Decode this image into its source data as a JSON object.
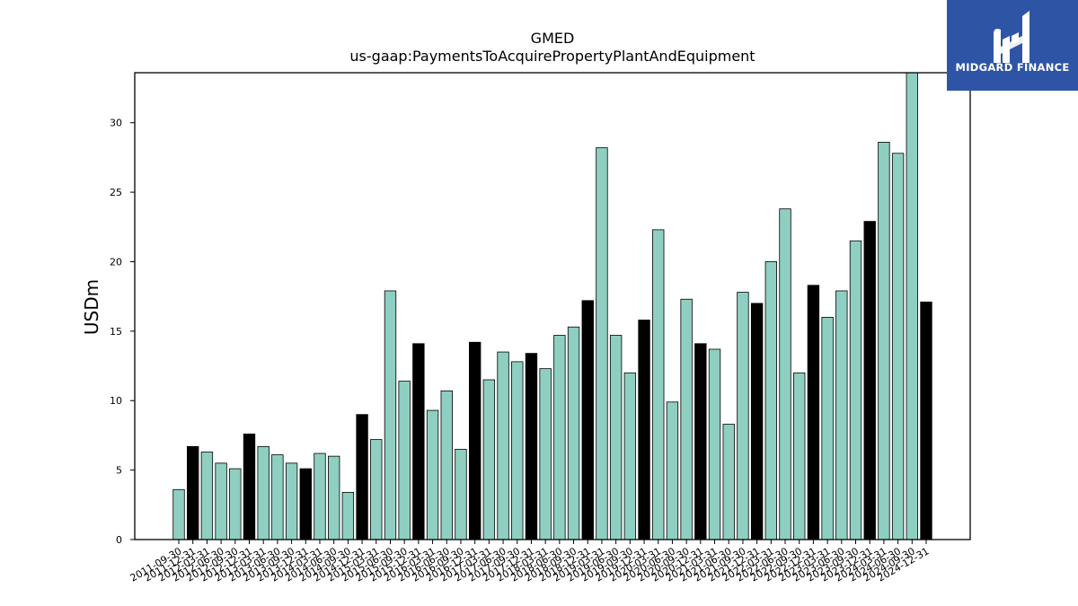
{
  "chart_data": {
    "type": "bar",
    "title": "GMED",
    "subtitle": "us-gaap:PaymentsToAcquirePropertyPlantAndEquipment",
    "ylabel": "USDm",
    "xlabel": "",
    "ylim": [
      0,
      33.6
    ],
    "yticks": [
      0,
      5,
      10,
      15,
      20,
      25,
      30
    ],
    "grid": false,
    "colors": {
      "quarter": "#8ecfc1",
      "fiscal_year_end": "#000000",
      "edge": "#000000"
    },
    "categories": [
      "2011-09-30",
      "2011-12-31",
      "2012-03-31",
      "2012-06-30",
      "2012-09-30",
      "2012-12-31",
      "2013-03-31",
      "2013-06-30",
      "2013-09-30",
      "2013-12-31",
      "2014-03-31",
      "2014-06-30",
      "2014-09-30",
      "2014-12-31",
      "2015-03-31",
      "2015-06-30",
      "2015-09-30",
      "2015-12-31",
      "2016-03-31",
      "2016-06-30",
      "2016-09-30",
      "2016-12-31",
      "2017-03-31",
      "2017-06-30",
      "2017-09-30",
      "2017-12-31",
      "2018-03-31",
      "2018-06-30",
      "2018-09-30",
      "2018-12-31",
      "2019-03-31",
      "2019-06-30",
      "2019-09-30",
      "2019-12-31",
      "2020-03-31",
      "2020-06-30",
      "2020-09-30",
      "2020-12-31",
      "2021-03-31",
      "2021-06-30",
      "2021-09-30",
      "2021-12-31",
      "2022-03-31",
      "2022-06-30",
      "2022-09-30",
      "2022-12-31",
      "2023-03-31",
      "2023-06-30",
      "2023-09-30",
      "2023-12-31",
      "2024-03-31",
      "2024-06-30",
      "2024-09-30",
      "2024-12-31"
    ],
    "values": [
      3.6,
      6.7,
      6.3,
      5.5,
      5.1,
      7.6,
      6.7,
      6.1,
      5.5,
      5.1,
      6.2,
      6.0,
      3.4,
      9.0,
      7.2,
      17.9,
      11.4,
      14.1,
      9.3,
      10.7,
      6.5,
      14.2,
      11.5,
      13.5,
      12.8,
      13.4,
      12.3,
      14.7,
      15.3,
      17.2,
      28.2,
      14.7,
      12.0,
      15.8,
      22.3,
      9.9,
      17.3,
      14.1,
      13.7,
      8.3,
      17.8,
      17.0,
      20.0,
      23.8,
      12.0,
      18.3,
      16.0,
      17.9,
      21.5,
      22.9,
      28.6,
      27.8,
      33.7,
      17.1
    ],
    "year_end": [
      false,
      true,
      false,
      false,
      false,
      true,
      false,
      false,
      false,
      true,
      false,
      false,
      false,
      true,
      false,
      false,
      false,
      true,
      false,
      false,
      false,
      true,
      false,
      false,
      false,
      true,
      false,
      false,
      false,
      true,
      false,
      false,
      false,
      true,
      false,
      false,
      false,
      true,
      false,
      false,
      false,
      true,
      false,
      false,
      false,
      true,
      false,
      false,
      false,
      true,
      false,
      false,
      false,
      true
    ]
  },
  "logo": {
    "name": "MIDGARD FINANCE",
    "icon": "midgard-logo-icon",
    "background": "#2e55a5"
  }
}
